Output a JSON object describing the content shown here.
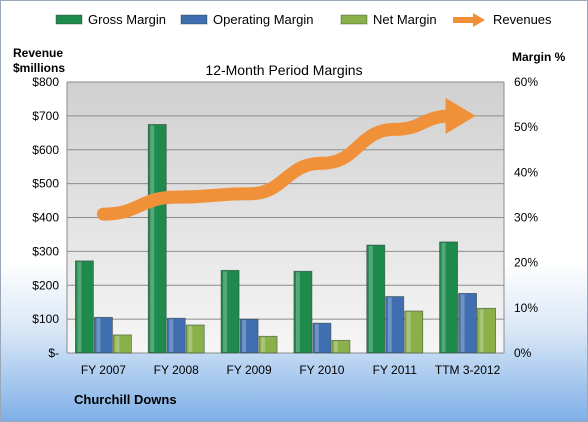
{
  "chart_data": {
    "type": "bar",
    "title": "12-Month Period Margins",
    "company": "Churchill Downs",
    "left_axis_title_line1": "Revenue",
    "left_axis_title_line2": "$millions",
    "right_axis_title": "Margin %",
    "categories": [
      "FY 2007",
      "FY 2008",
      "FY 2009",
      "FY 2010",
      "FY 2011",
      "TTM 3-2012"
    ],
    "left_ticks": [
      "$-",
      "$100",
      "$200",
      "$300",
      "$400",
      "$500",
      "$600",
      "$700",
      "$800"
    ],
    "right_ticks": [
      "0%",
      "10%",
      "20%",
      "30%",
      "40%",
      "50%",
      "60%"
    ],
    "left_ylim": [
      0,
      800
    ],
    "right_ylim": [
      0,
      60
    ],
    "grid": true,
    "legend_position": "top",
    "series": [
      {
        "name": "Gross Margin",
        "kind": "bar",
        "axis": "right",
        "color": "#1e8a4c",
        "values": [
          20.4,
          50.6,
          18.3,
          18.1,
          23.9,
          24.6
        ]
      },
      {
        "name": "Operating Margin",
        "kind": "bar",
        "axis": "right",
        "color": "#3f6fb0",
        "values": [
          7.9,
          7.7,
          7.5,
          6.6,
          12.5,
          13.2
        ]
      },
      {
        "name": "Net Margin",
        "kind": "bar",
        "axis": "right",
        "color": "#8ab04a",
        "values": [
          4.0,
          6.2,
          3.7,
          2.8,
          9.3,
          9.9
        ]
      },
      {
        "name": "Revenues",
        "kind": "line",
        "axis": "left",
        "color": "#f0913a",
        "values": [
          410,
          460,
          470,
          560,
          660,
          700
        ]
      }
    ]
  }
}
